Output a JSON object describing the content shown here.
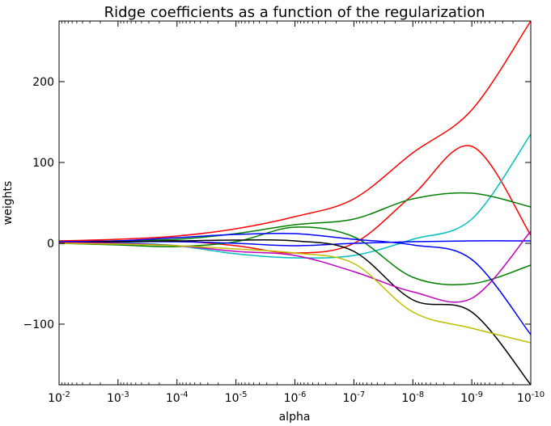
{
  "chart_data": {
    "type": "line",
    "title": "Ridge coefficients as a function of the regularization",
    "xlabel": "alpha",
    "ylabel": "weights",
    "x_scale": "log",
    "x_inverted": true,
    "x_range": [
      0.01,
      1e-10
    ],
    "ylim": [
      -175,
      275
    ],
    "x_ticks": [
      {
        "value": 0.01,
        "base": "10",
        "exp": "-2"
      },
      {
        "value": 0.001,
        "base": "10",
        "exp": "-3"
      },
      {
        "value": 0.0001,
        "base": "10",
        "exp": "-4"
      },
      {
        "value": 1e-05,
        "base": "10",
        "exp": "-5"
      },
      {
        "value": 1e-06,
        "base": "10",
        "exp": "-6"
      },
      {
        "value": 1e-07,
        "base": "10",
        "exp": "-7"
      },
      {
        "value": 1e-08,
        "base": "10",
        "exp": "-8"
      },
      {
        "value": 1e-09,
        "base": "10",
        "exp": "-9"
      },
      {
        "value": 1e-10,
        "base": "10",
        "exp": "-10"
      }
    ],
    "y_ticks": [
      {
        "value": 200,
        "label": "200"
      },
      {
        "value": 100,
        "label": "100"
      },
      {
        "value": 0,
        "label": "0"
      },
      {
        "value": -100,
        "label": "−100"
      }
    ],
    "grid": false,
    "legend": "none",
    "x": [
      0.01,
      0.001,
      0.0001,
      1e-05,
      1e-06,
      1e-07,
      1e-08,
      1e-09,
      1e-10
    ],
    "series": [
      {
        "color": "#ff0000",
        "values": [
          3,
          5,
          9,
          18,
          33,
          55,
          112,
          165,
          275
        ]
      },
      {
        "color": "#ff0000",
        "values": [
          2,
          3,
          3,
          -3,
          -12,
          0,
          60,
          120,
          10
        ]
      },
      {
        "color": "#00bfbf",
        "values": [
          2,
          1,
          -3,
          -13,
          -18,
          -15,
          5,
          30,
          135
        ]
      },
      {
        "color": "#008000",
        "values": [
          1,
          3,
          5,
          12,
          23,
          30,
          55,
          62,
          45
        ]
      },
      {
        "color": "#008000",
        "values": [
          0,
          -2,
          -4,
          2,
          20,
          8,
          -42,
          -50,
          -27
        ]
      },
      {
        "color": "#0000ff",
        "values": [
          1,
          2,
          2,
          0,
          -3,
          0,
          2,
          3,
          3
        ]
      },
      {
        "color": "#0000ff",
        "values": [
          2,
          3,
          7,
          11,
          12,
          5,
          -2,
          -20,
          -113
        ]
      },
      {
        "color": "#000000",
        "values": [
          1,
          2,
          3,
          4,
          3,
          -10,
          -70,
          -85,
          -175
        ]
      },
      {
        "color": "#bf00bf",
        "values": [
          1,
          0,
          -3,
          -10,
          -15,
          -35,
          -60,
          -68,
          15
        ]
      },
      {
        "color": "#bfbf00",
        "values": [
          0,
          -1,
          -3,
          -7,
          -12,
          -25,
          -85,
          -105,
          -123
        ]
      }
    ]
  }
}
